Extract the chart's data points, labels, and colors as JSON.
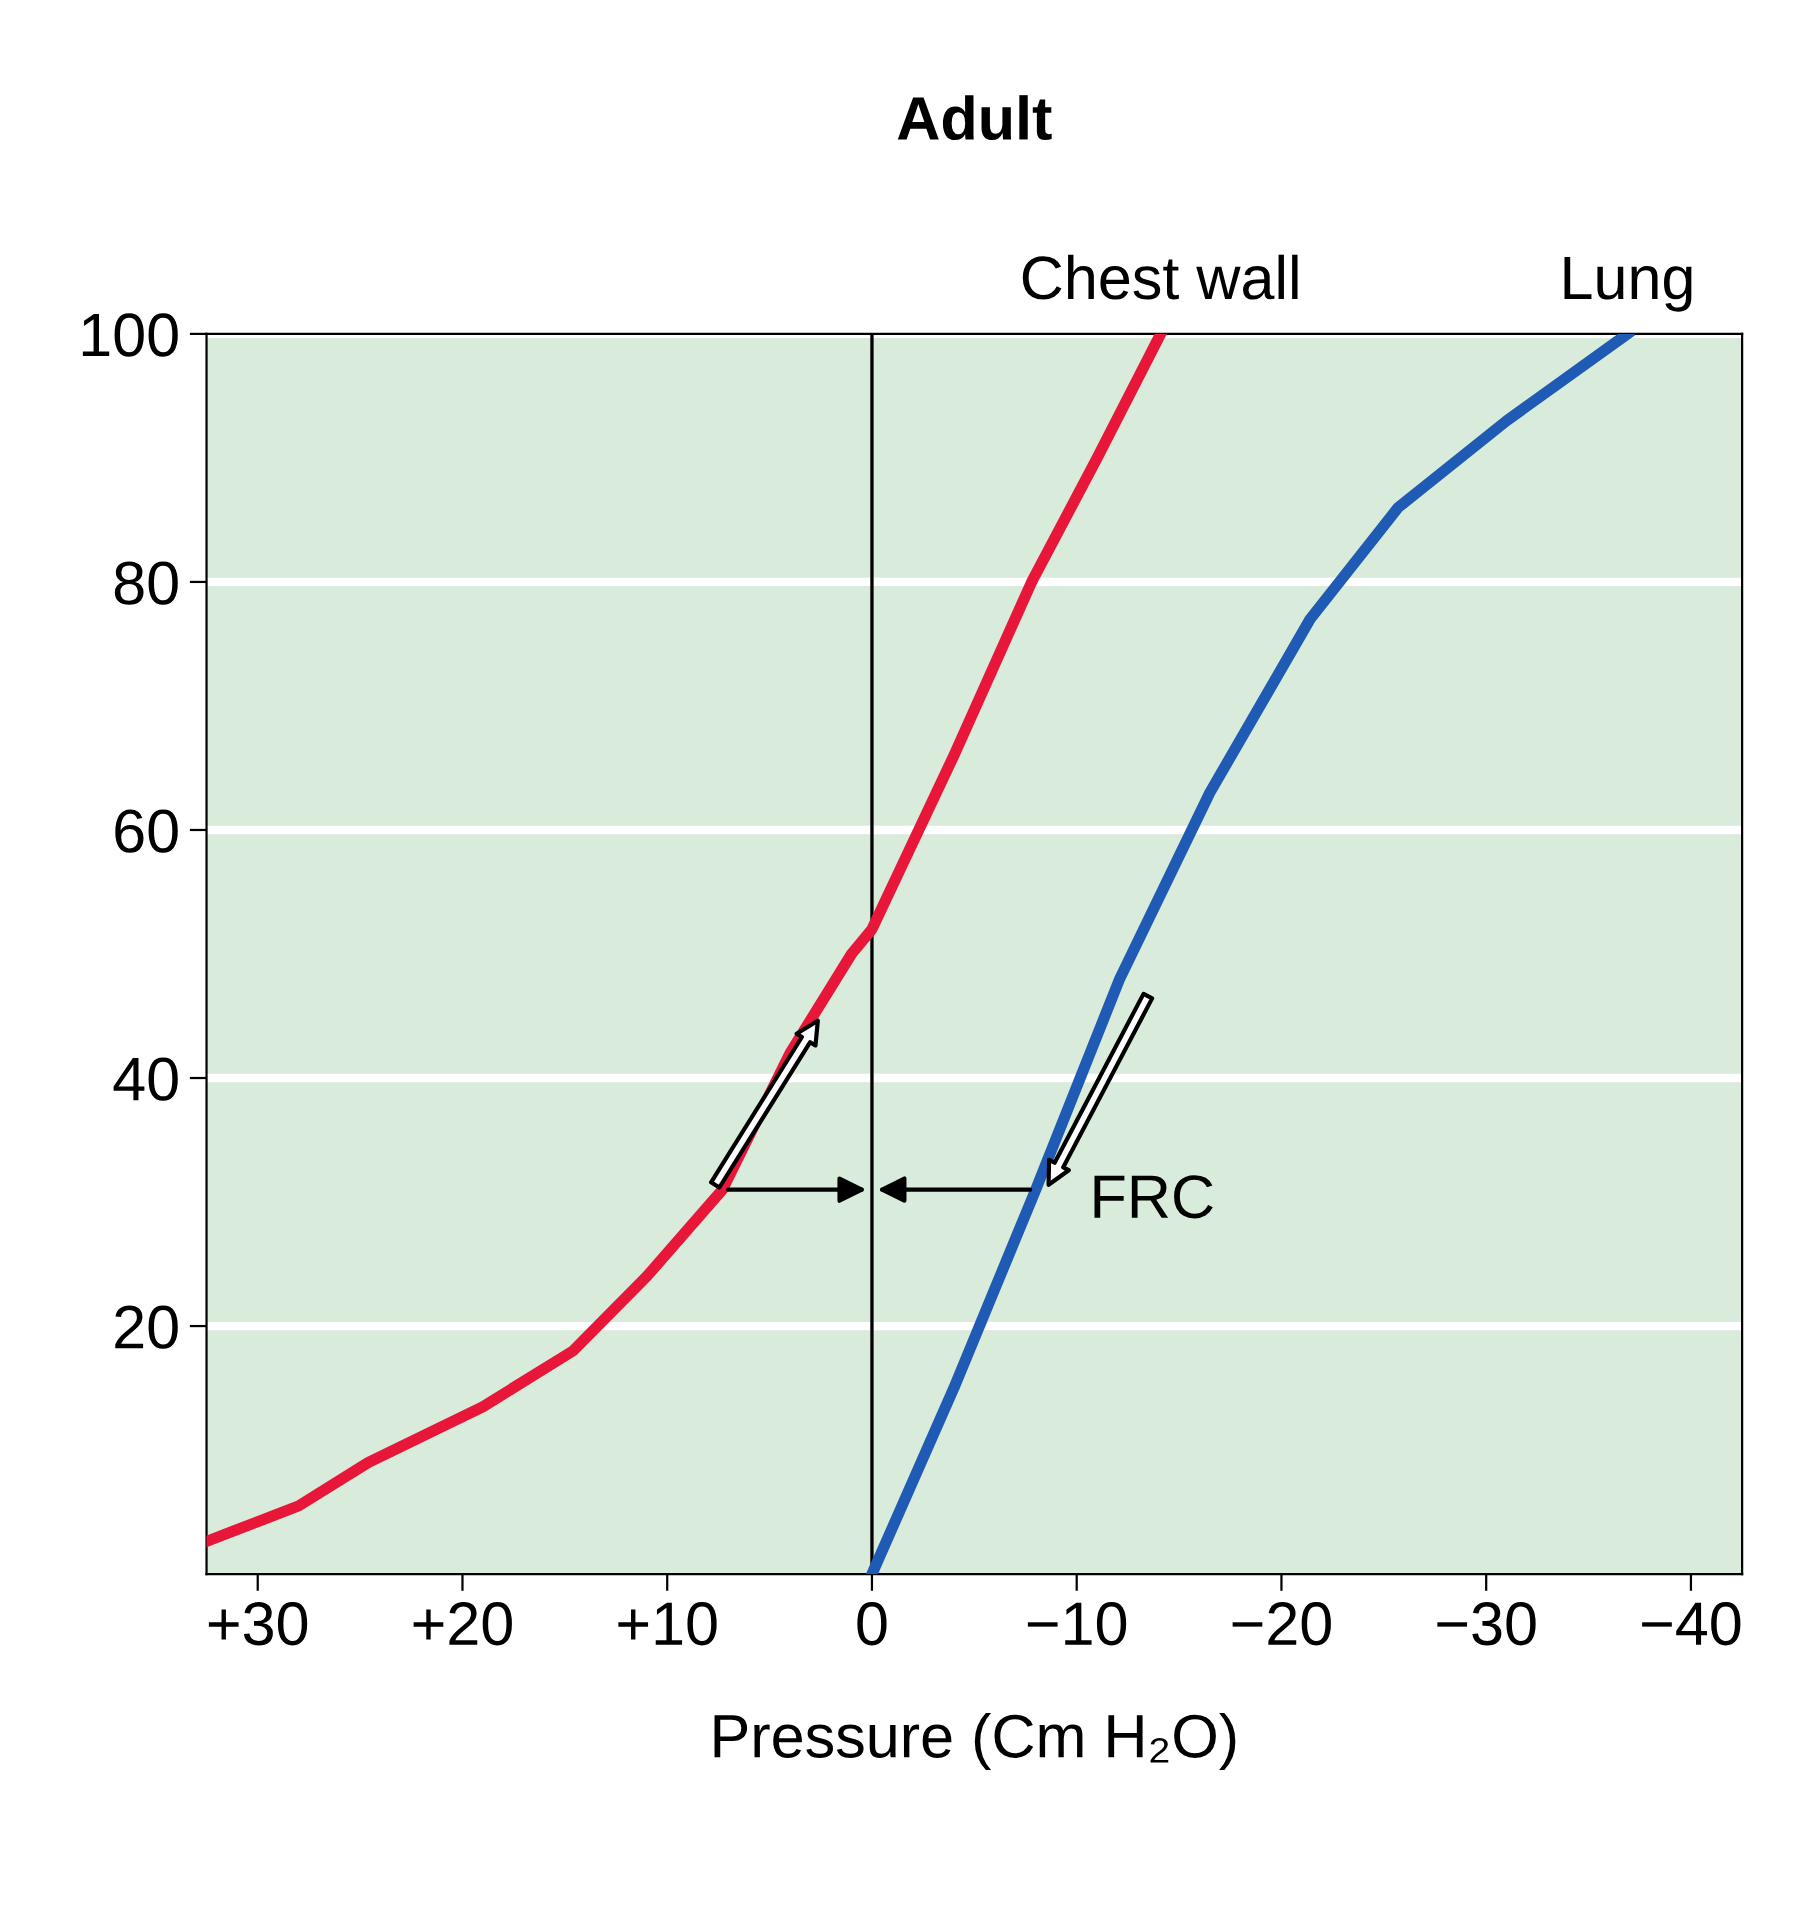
{
  "chart_data": {
    "type": "line",
    "title": "Adult",
    "xlabel": "Pressure (Cm H₂O)",
    "xlim": [
      32.5,
      -42.5
    ],
    "ylim": [
      0,
      100
    ],
    "xticks": [
      {
        "value": 30,
        "label": "+30"
      },
      {
        "value": 20,
        "label": "+20"
      },
      {
        "value": 10,
        "label": "+10"
      },
      0,
      {
        "value": -10,
        "label": "−10"
      },
      {
        "value": -20,
        "label": "−20"
      },
      {
        "value": -30,
        "label": "−30"
      },
      {
        "value": -40,
        "label": "−40"
      }
    ],
    "yticks": [
      20,
      40,
      60,
      80,
      100
    ],
    "grid": "y",
    "legend": false,
    "marker": "none",
    "line_style": "solid",
    "series": [
      {
        "name": "Chest wall",
        "color": "#e8173a",
        "x": [
          32.4,
          28,
          24.6,
          19,
          14.6,
          11,
          7.3,
          4,
          1,
          0,
          -4,
          -7.8,
          -11,
          -14.1
        ],
        "values": [
          2.7,
          5.5,
          9,
          13.5,
          18,
          24,
          31,
          42,
          50,
          52,
          66,
          80,
          90,
          100
        ]
      },
      {
        "name": "Lung",
        "color": "#1f5bb5",
        "x": [
          0,
          -4,
          -8,
          -12.1,
          -16.5,
          -21.4,
          -25.7,
          -31,
          -36.9
        ],
        "values": [
          0,
          15,
          31,
          48,
          63,
          77,
          86,
          93,
          100
        ]
      }
    ],
    "ref_lines": [
      {
        "axis": "x",
        "value": 0,
        "color": "#000000",
        "line_style": "solid"
      }
    ],
    "annotations": [
      "FRC"
    ]
  }
}
